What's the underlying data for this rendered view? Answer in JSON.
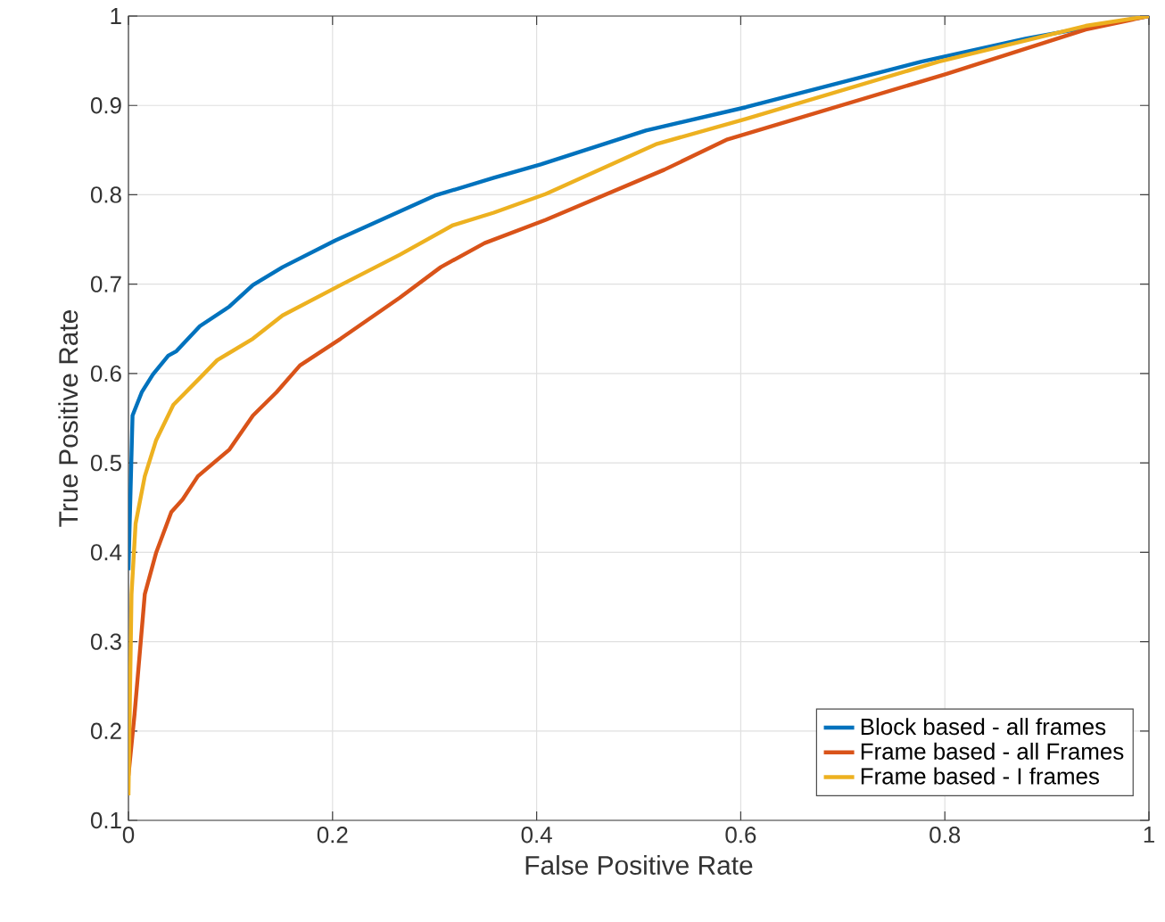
{
  "chart_data": {
    "type": "line",
    "xlabel": "False Positive Rate",
    "ylabel": "True Positive Rate",
    "xlim": [
      0,
      1
    ],
    "ylim": [
      0.1,
      1
    ],
    "xticks": [
      0,
      0.2,
      0.4,
      0.6,
      0.8,
      1
    ],
    "yticks": [
      0.1,
      0.2,
      0.3,
      0.4,
      0.5,
      0.6,
      0.7,
      0.8,
      0.9,
      1
    ],
    "grid": true,
    "legend": "bottom right",
    "series": [
      {
        "name": "Block based - all frames",
        "color": "#0072bd",
        "x": [
          0,
          0.004,
          0.013,
          0.024,
          0.039,
          0.047,
          0.07,
          0.099,
          0.122,
          0.151,
          0.203,
          0.3,
          0.358,
          0.404,
          0.507,
          0.605,
          0.777,
          0.88,
          1
        ],
        "values": [
          0.38,
          0.553,
          0.579,
          0.599,
          0.62,
          0.625,
          0.653,
          0.675,
          0.699,
          0.719,
          0.749,
          0.799,
          0.819,
          0.834,
          0.872,
          0.898,
          0.949,
          0.975,
          1
        ]
      },
      {
        "name": "Frame based - all Frames",
        "color": "#d95319",
        "x": [
          0,
          0.006,
          0.016,
          0.027,
          0.042,
          0.053,
          0.068,
          0.099,
          0.122,
          0.145,
          0.168,
          0.208,
          0.266,
          0.306,
          0.349,
          0.409,
          0.525,
          0.587,
          0.801,
          0.938,
          1
        ],
        "values": [
          0.15,
          0.219,
          0.353,
          0.399,
          0.445,
          0.459,
          0.485,
          0.515,
          0.553,
          0.579,
          0.609,
          0.639,
          0.685,
          0.719,
          0.746,
          0.772,
          0.828,
          0.862,
          0.935,
          0.985,
          1
        ]
      },
      {
        "name": "Frame based - I frames",
        "color": "#edb120",
        "x": [
          0,
          0.003,
          0.007,
          0.016,
          0.027,
          0.044,
          0.07,
          0.087,
          0.122,
          0.151,
          0.208,
          0.266,
          0.318,
          0.358,
          0.409,
          0.518,
          0.605,
          0.794,
          0.938,
          1
        ],
        "values": [
          0.128,
          0.353,
          0.432,
          0.485,
          0.525,
          0.565,
          0.595,
          0.615,
          0.639,
          0.665,
          0.699,
          0.733,
          0.766,
          0.78,
          0.801,
          0.857,
          0.885,
          0.949,
          0.989,
          1
        ]
      }
    ]
  }
}
